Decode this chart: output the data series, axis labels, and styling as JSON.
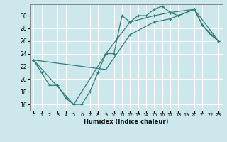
{
  "title": "",
  "xlabel": "Humidex (Indice chaleur)",
  "bg_color": "#cce8ec",
  "grid_color": "#ffffff",
  "line_color": "#2d7d78",
  "xlim": [
    -0.5,
    23.5
  ],
  "ylim": [
    15.0,
    31.8
  ],
  "xticks": [
    0,
    1,
    2,
    3,
    4,
    5,
    6,
    7,
    8,
    9,
    10,
    11,
    12,
    13,
    14,
    15,
    16,
    17,
    18,
    19,
    20,
    21,
    22,
    23
  ],
  "yticks": [
    16,
    18,
    20,
    22,
    24,
    26,
    28,
    30
  ],
  "line1_x": [
    0,
    1,
    2,
    3,
    4,
    5,
    6,
    7,
    8,
    9,
    10,
    11,
    12,
    13,
    14,
    15,
    16,
    17,
    18,
    19,
    20,
    21,
    22,
    23
  ],
  "line1_y": [
    23,
    21,
    19,
    19,
    17,
    16,
    16,
    18,
    21,
    24,
    24,
    30,
    29,
    30,
    30,
    31,
    31.5,
    30.5,
    30,
    30.5,
    31,
    28.5,
    27,
    26
  ],
  "line2_x": [
    0,
    5,
    9,
    12,
    15,
    17,
    20,
    21,
    23
  ],
  "line2_y": [
    23,
    16,
    24,
    29,
    30,
    30.5,
    31,
    28.5,
    26
  ],
  "line3_x": [
    0,
    9,
    12,
    15,
    17,
    20,
    23
  ],
  "line3_y": [
    23,
    21.5,
    27,
    29,
    29.5,
    31,
    26
  ]
}
